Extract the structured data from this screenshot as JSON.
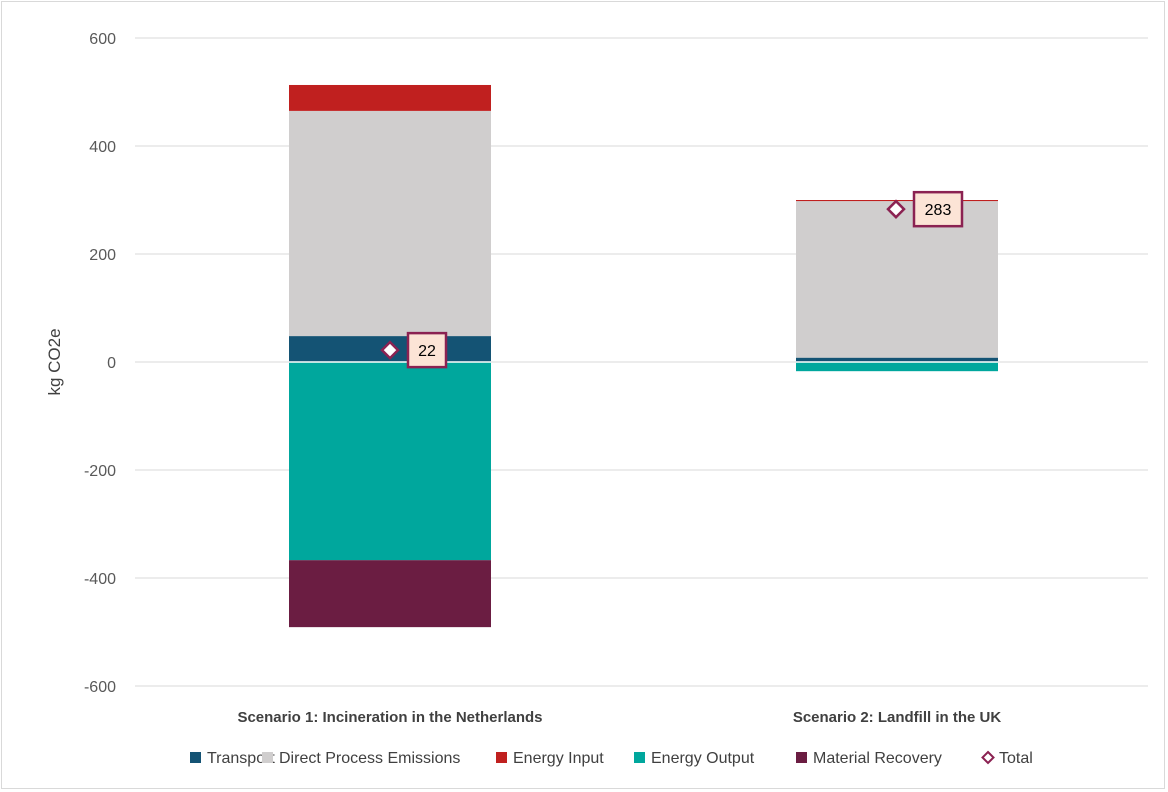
{
  "chart_data": {
    "type": "bar",
    "stacked": true,
    "ylabel": "kg CO2e",
    "ylim": [
      -600,
      600
    ],
    "yticks": [
      600,
      400,
      200,
      0,
      -200,
      -400,
      -600
    ],
    "grid": true,
    "legend_position": "bottom",
    "categories": [
      "Scenario 1: Incineration in the Netherlands",
      "Scenario 2: Landfill in the UK"
    ],
    "series": [
      {
        "name": "Transport",
        "color": "#145374",
        "values": [
          48,
          8
        ]
      },
      {
        "name": "Direct Process Emissions",
        "color": "#d0cece",
        "values": [
          417,
          290
        ]
      },
      {
        "name": "Energy Input",
        "color": "#c0201f",
        "values": [
          48,
          2
        ]
      },
      {
        "name": "Energy Output",
        "color": "#00a79d",
        "values": [
          -367,
          -17
        ]
      },
      {
        "name": "Material Recovery",
        "color": "#6b1d42",
        "values": [
          -124,
          0
        ]
      }
    ],
    "total": {
      "name": "Total",
      "color": "#8b2252",
      "values": [
        22,
        283
      ],
      "labels": [
        "22",
        "283"
      ]
    }
  }
}
